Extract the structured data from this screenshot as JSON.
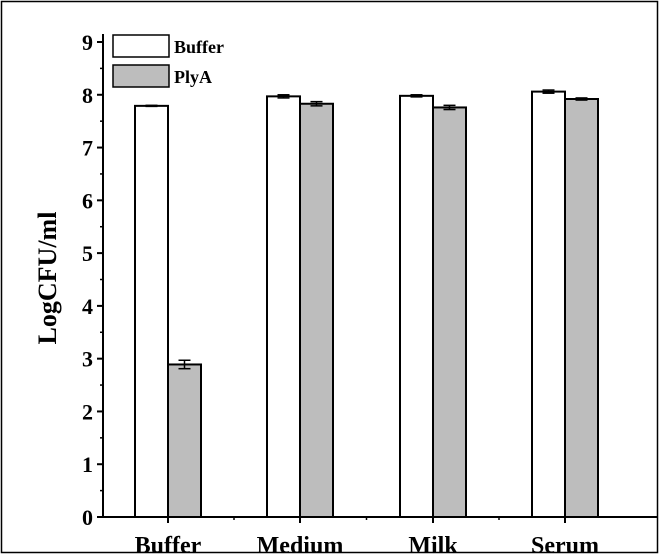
{
  "chart_data": {
    "type": "bar",
    "title": "",
    "xlabel": "",
    "ylabel": "LogCFU/ml",
    "ylim": [
      0,
      9
    ],
    "yticks": [
      0,
      1,
      2,
      3,
      4,
      5,
      6,
      7,
      8,
      9
    ],
    "categories": [
      "Buffer",
      "Medium",
      "Milk",
      "Serum"
    ],
    "series": [
      {
        "name": "Buffer",
        "color": "#ffffff",
        "values": [
          7.79,
          7.97,
          7.98,
          8.06
        ],
        "errors": [
          0.01,
          0.03,
          0.02,
          0.03
        ]
      },
      {
        "name": "PlyA",
        "color": "#bdbdbd",
        "values": [
          2.89,
          7.83,
          7.76,
          7.92
        ],
        "errors": [
          0.08,
          0.04,
          0.04,
          0.02
        ]
      }
    ],
    "legend": "top-left",
    "grid": false
  }
}
